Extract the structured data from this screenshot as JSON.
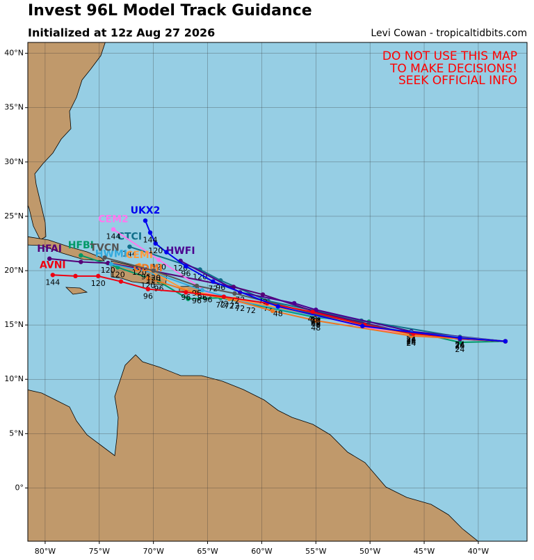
{
  "header": {
    "title": "Invest 96L Model Track Guidance",
    "subtitle": "Initialized at 12z Aug 27 2026",
    "credit": "Levi Cowan - tropicaltidbits.com"
  },
  "map": {
    "warning": [
      "DO NOT USE THIS MAP",
      "TO MAKE DECISIONS!",
      "SEEK OFFICIAL INFO"
    ],
    "xlim": [
      -81.6,
      -35.5
    ],
    "ylim": [
      -4.9,
      41.0
    ],
    "grid": true,
    "xticks": [
      {
        "value": -80,
        "label": "80°W"
      },
      {
        "value": -75,
        "label": "75°W"
      },
      {
        "value": -70,
        "label": "70°W"
      },
      {
        "value": -65,
        "label": "65°W"
      },
      {
        "value": -60,
        "label": "60°W"
      },
      {
        "value": -55,
        "label": "55°W"
      },
      {
        "value": -50,
        "label": "50°W"
      },
      {
        "value": -45,
        "label": "45°W"
      },
      {
        "value": -40,
        "label": "40°W"
      }
    ],
    "yticks": [
      {
        "value": 0,
        "label": "0°"
      },
      {
        "value": 5,
        "label": "5°N"
      },
      {
        "value": 10,
        "label": "10°N"
      },
      {
        "value": 15,
        "label": "15°N"
      },
      {
        "value": 20,
        "label": "20°N"
      },
      {
        "value": 25,
        "label": "25°N"
      },
      {
        "value": 30,
        "label": "30°N"
      },
      {
        "value": 35,
        "label": "35°N"
      },
      {
        "value": 40,
        "label": "40°N"
      }
    ],
    "tracks": [
      {
        "name": "HFBI",
        "color": "#009966",
        "points": [
          [
            -37.5,
            13.5
          ],
          [
            -41.7,
            13.4
          ],
          [
            -50.1,
            15.3
          ],
          [
            -55.0,
            15.7
          ],
          [
            -63.8,
            17.5
          ],
          [
            -66.8,
            17.4
          ],
          [
            -69.5,
            19.0
          ],
          [
            -73.3,
            20.3
          ],
          [
            -76.7,
            21.4
          ]
        ],
        "hours": [
          null,
          24,
          null,
          48,
          72,
          null,
          96,
          120,
          null
        ]
      },
      {
        "name": "CTCI",
        "color": "#116e8a",
        "points": [
          [
            -37.5,
            13.5
          ],
          [
            -41.7,
            13.9
          ],
          [
            -50.8,
            15.4
          ],
          [
            -55.0,
            16.3
          ],
          [
            -59.4,
            17.2
          ],
          [
            -63.8,
            19.1
          ],
          [
            -65.7,
            20.1
          ],
          [
            -72.2,
            22.2
          ]
        ],
        "hours": [
          null,
          24,
          null,
          48,
          72,
          96,
          120,
          144
        ]
      },
      {
        "name": "HFAI",
        "color": "#550077",
        "points": [
          [
            -37.5,
            13.5
          ],
          [
            -41.7,
            13.7
          ],
          [
            -46.2,
            14.2
          ],
          [
            -55.0,
            16.2
          ],
          [
            -59.9,
            17.8
          ],
          [
            -62.6,
            18.5
          ],
          [
            -70.7,
            20.1
          ],
          [
            -74.2,
            20.7
          ],
          [
            -76.7,
            20.8
          ],
          [
            -79.6,
            21.1
          ]
        ],
        "hours": [
          null,
          24,
          null,
          48,
          72,
          null,
          96,
          120,
          null,
          null
        ]
      },
      {
        "name": "HWFI",
        "color": "#4b0090",
        "points": [
          [
            -37.5,
            13.5
          ],
          [
            -46.2,
            14.4
          ],
          [
            -55.0,
            16.4
          ],
          [
            -57.0,
            17.0
          ],
          [
            -62.0,
            18.0
          ],
          [
            -67.5,
            20.9
          ]
        ],
        "hours": [
          null,
          24,
          48,
          null,
          72,
          120
        ]
      },
      {
        "name": "CEM2",
        "color": "#ff77ee",
        "points": [
          [
            -37.5,
            13.5
          ],
          [
            -46.2,
            14.0
          ],
          [
            -50.5,
            14.8
          ],
          [
            -55.0,
            15.9
          ],
          [
            -62.0,
            17.2
          ],
          [
            -65.0,
            18.0
          ],
          [
            -69.5,
            21.0
          ],
          [
            -73.7,
            23.8
          ]
        ],
        "hours": [
          null,
          24,
          null,
          48,
          72,
          96,
          120,
          144
        ]
      },
      {
        "name": "HWMI",
        "color": "#33aadd",
        "points": [
          [
            -37.5,
            13.5
          ],
          [
            -46.2,
            14.3
          ],
          [
            -55.0,
            15.8
          ],
          [
            -61.0,
            17.0
          ],
          [
            -65.5,
            18.2
          ],
          [
            -70.0,
            19.8
          ],
          [
            -73.9,
            20.6
          ]
        ],
        "hours": [
          null,
          24,
          48,
          72,
          96,
          120,
          null
        ]
      },
      {
        "name": "CEMI",
        "color": "#ff9a3c",
        "points": [
          [
            -37.5,
            13.5
          ],
          [
            -46.2,
            14.1
          ],
          [
            -55.0,
            15.9
          ],
          [
            -62.5,
            17.4
          ],
          [
            -67.0,
            18.2
          ],
          [
            -71.3,
            20.5
          ]
        ],
        "hours": [
          null,
          24,
          48,
          72,
          96,
          120
        ]
      },
      {
        "name": "GDMI",
        "color": "#ee7722",
        "points": [
          [
            -37.5,
            13.5
          ],
          [
            -46.2,
            14.0
          ],
          [
            -55.0,
            15.4
          ],
          [
            -59.0,
            16.3
          ],
          [
            -63.0,
            17.4
          ],
          [
            -66.0,
            17.9
          ],
          [
            -70.5,
            19.3
          ]
        ],
        "hours": [
          null,
          24,
          48,
          null,
          72,
          96,
          120
        ]
      },
      {
        "name": "TVCN",
        "color": "#555555",
        "points": [
          [
            -37.5,
            13.5
          ],
          [
            -46.2,
            14.2
          ],
          [
            -55.0,
            16.0
          ],
          [
            -62.5,
            17.9
          ],
          [
            -66.0,
            18.6
          ],
          [
            -70.0,
            20.0
          ],
          [
            -74.5,
            21.2
          ]
        ],
        "hours": [
          null,
          24,
          48,
          72,
          96,
          120,
          null
        ]
      },
      {
        "name": "AVNI",
        "color": "#ee0011",
        "points": [
          [
            -37.5,
            13.5
          ],
          [
            -41.7,
            13.8
          ],
          [
            -46.0,
            14.2
          ],
          [
            -50.5,
            15.0
          ],
          [
            -55.3,
            16.2
          ],
          [
            -59.5,
            17.0
          ],
          [
            -63.5,
            17.6
          ],
          [
            -67.0,
            18.0
          ],
          [
            -70.5,
            18.3
          ],
          [
            -73.0,
            19.0
          ],
          [
            -75.1,
            19.5
          ],
          [
            -77.2,
            19.5
          ],
          [
            -79.3,
            19.6
          ]
        ],
        "hours": [
          null,
          24,
          null,
          null,
          48,
          null,
          72,
          null,
          96,
          null,
          120,
          null,
          144
        ]
      },
      {
        "name": "UKX2",
        "color": "#0000ee",
        "points": [
          [
            -37.5,
            13.5
          ],
          [
            -41.7,
            13.8
          ],
          [
            -50.7,
            14.9
          ],
          [
            -58.5,
            16.7
          ],
          [
            -64.5,
            19.0
          ],
          [
            -67.0,
            20.4
          ],
          [
            -68.8,
            21.7
          ],
          [
            -69.8,
            22.5
          ],
          [
            -70.3,
            23.5
          ],
          [
            -70.75,
            24.6
          ]
        ],
        "hours": [
          null,
          24,
          null,
          48,
          72,
          96,
          null,
          120,
          144,
          null
        ]
      }
    ]
  }
}
